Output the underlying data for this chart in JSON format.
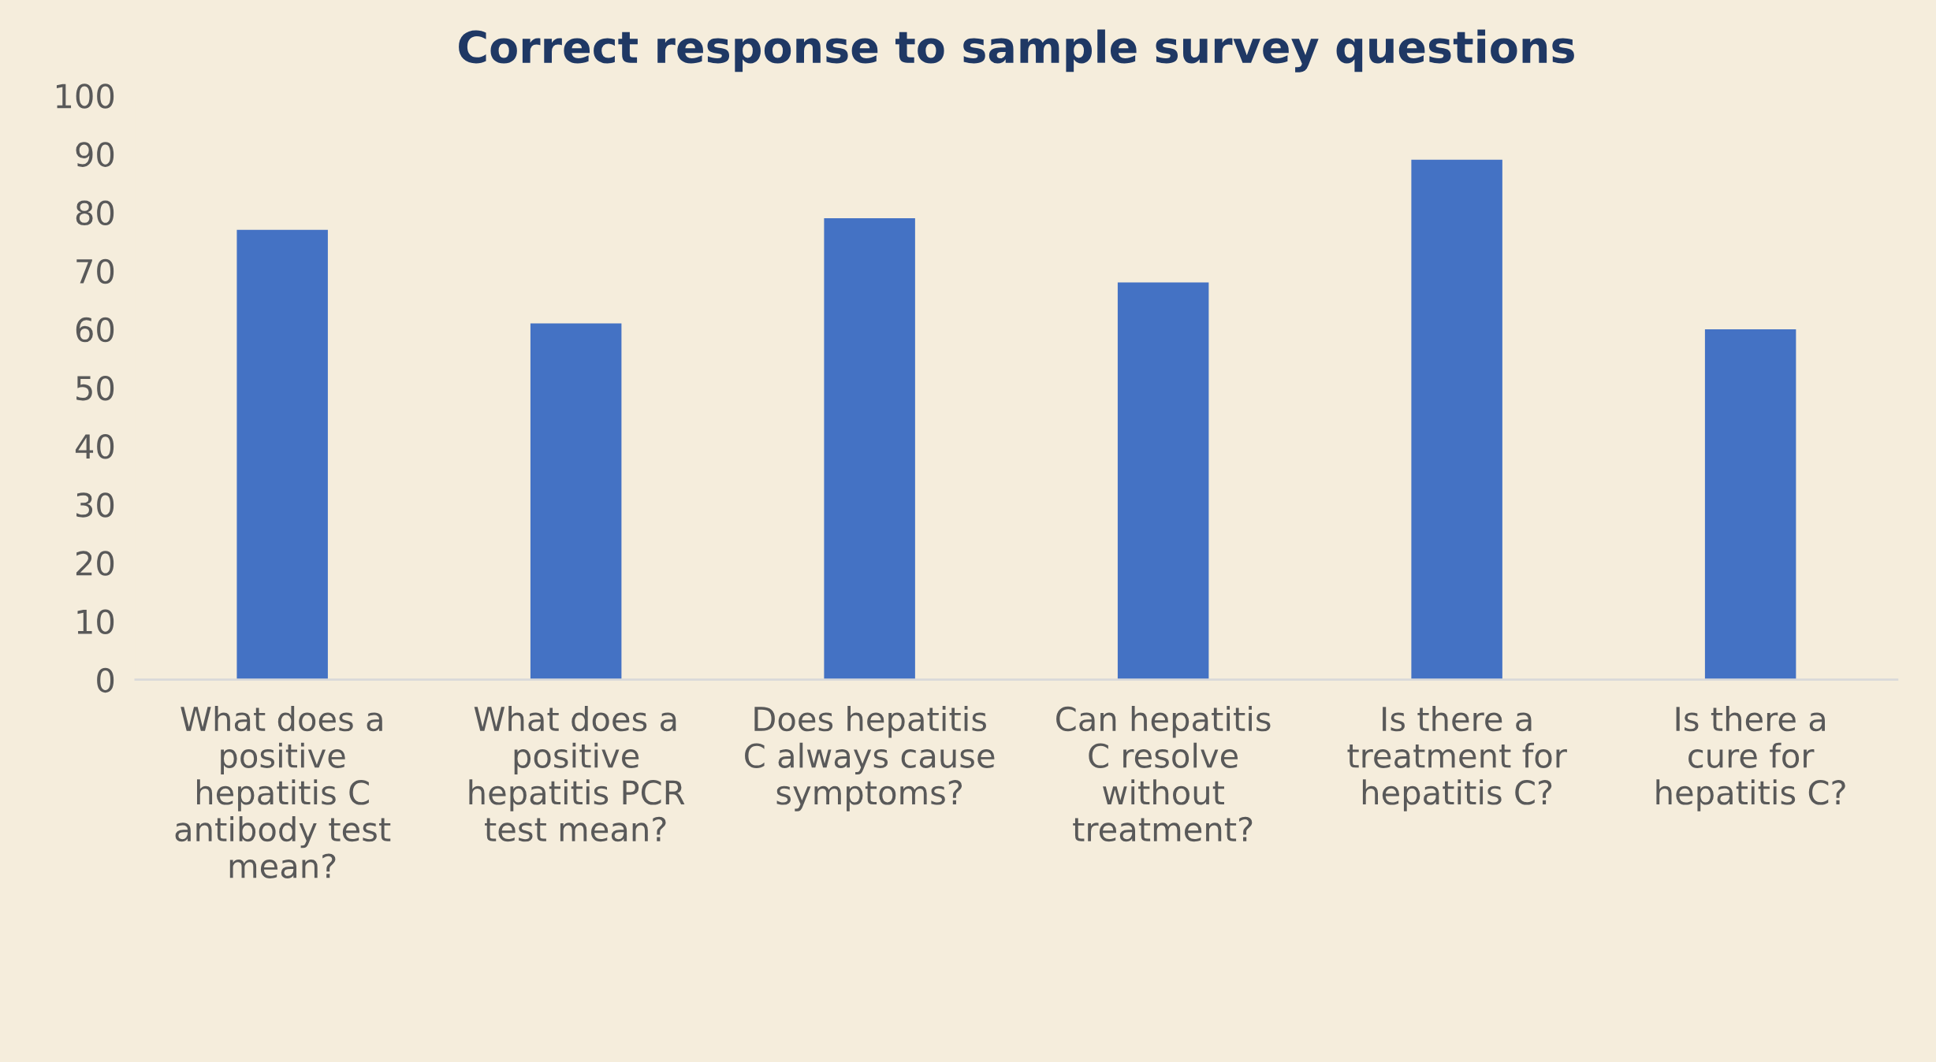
{
  "chart_data": {
    "type": "bar",
    "title": "Correct response to sample survey questions",
    "categories": [
      "What does a positive hepatitis C antibody test mean?",
      "What does a positive hepatitis PCR test mean?",
      "Does hepatitis C always cause symptoms?",
      "Can hepatitis C resolve without treatment?",
      "Is there a treatment for hepatitis C?",
      "Is there a cure for hepatitis C?"
    ],
    "values": [
      77,
      61,
      79,
      68,
      89,
      60
    ],
    "color": "#4472c4",
    "ylim": [
      0,
      100
    ],
    "yticks": [
      0,
      10,
      20,
      30,
      40,
      50,
      60,
      70,
      80,
      90,
      100
    ],
    "grid": false,
    "legend": false
  }
}
